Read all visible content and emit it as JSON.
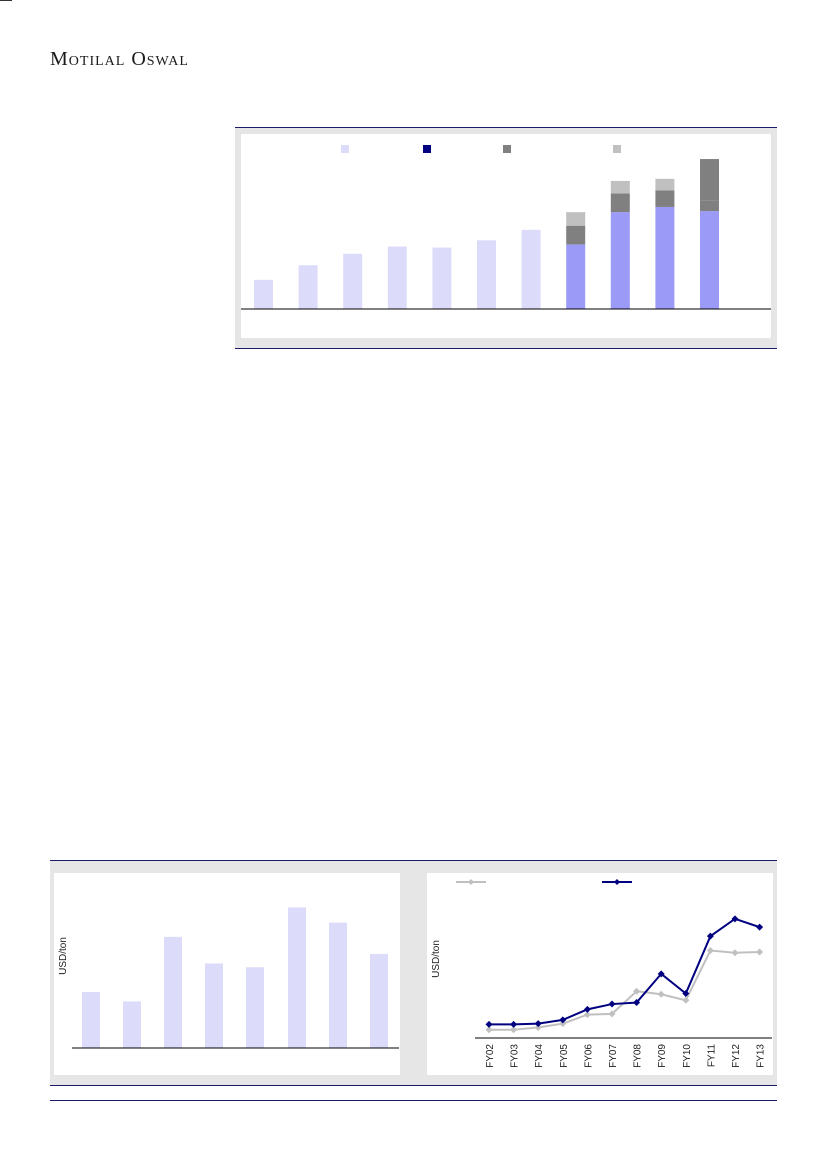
{
  "header": {
    "brand": "Motilal Oswal"
  },
  "chart_data": [
    {
      "type": "bar",
      "stacked": true,
      "categories": [
        "",
        "",
        "",
        "",
        "",
        "",
        "",
        "",
        "",
        "",
        ""
      ],
      "series": [
        {
          "color": "#dcdcfa",
          "values": [
            28,
            42,
            53,
            60,
            59,
            66,
            76,
            0,
            0,
            0,
            0
          ]
        },
        {
          "color": "#9b9bf7",
          "values": [
            0,
            0,
            0,
            0,
            0,
            0,
            0,
            62,
            93,
            98,
            94
          ]
        },
        {
          "color": "#808080",
          "values": [
            0,
            0,
            0,
            0,
            0,
            0,
            0,
            18,
            18,
            16,
            10
          ]
        },
        {
          "color": "#c0c0c0",
          "values": [
            0,
            0,
            0,
            0,
            0,
            0,
            0,
            13,
            12,
            11,
            0
          ]
        }
      ],
      "extra_segment": {
        "index": 10,
        "color": "#808080",
        "value": 40
      },
      "legend": [
        {
          "color": "#dcdcfa"
        },
        {
          "color": "#000080"
        },
        {
          "color": "#808080"
        },
        {
          "color": "#c0c0c0"
        }
      ],
      "ylim": [
        0,
        145
      ],
      "legend_position": "top"
    },
    {
      "type": "bar",
      "categories": [
        "",
        "",
        "",
        "",
        "",
        "",
        "",
        ""
      ],
      "values": [
        59,
        49,
        117,
        89,
        85,
        148,
        132,
        99
      ],
      "ylabel": "USD/ton",
      "ylim": [
        0,
        160
      ],
      "color": "#dcdcfa"
    },
    {
      "type": "line",
      "x": [
        "FY02",
        "FY03",
        "FY04",
        "FY05",
        "FY06",
        "FY07",
        "FY08",
        "FY09",
        "FY10",
        "FY11",
        "FY12",
        "FY13"
      ],
      "series": [
        {
          "color": "#c0c0c0",
          "values": [
            6,
            6,
            9,
            14,
            26,
            27,
            57,
            53,
            45,
            111,
            108,
            109
          ]
        },
        {
          "color": "#000080",
          "values": [
            13,
            13,
            14,
            19,
            33,
            40,
            42,
            80,
            54,
            130,
            153,
            142
          ]
        }
      ],
      "ylabel": "USD/ton",
      "ylim": [
        -5,
        170
      ],
      "legend_position": "top-left"
    }
  ]
}
